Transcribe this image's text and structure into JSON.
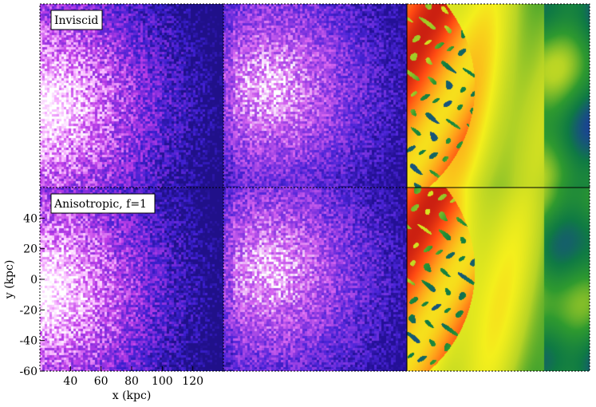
{
  "figure": {
    "rows": [
      {
        "label": "Inviscid"
      },
      {
        "label": "Anisotropic, f=1"
      }
    ],
    "x_axis": {
      "label": "x (kpc)",
      "range": [
        20,
        140
      ],
      "ticks": [
        40,
        60,
        80,
        100,
        120
      ]
    },
    "y_axis": {
      "label": "y (kpc)",
      "range": [
        -60,
        60
      ],
      "ticks": [
        40,
        20,
        0,
        -20,
        -40,
        -60
      ]
    },
    "colormaps": {
      "column1": [
        "#20108a",
        "#3b1fd0",
        "#7a2bdc",
        "#c040e8",
        "#f7b3ff",
        "#ffffff"
      ],
      "column2": [
        "#241096",
        "#4a24d8",
        "#8f3ae2",
        "#d766f0",
        "#ffffff"
      ],
      "column3": [
        "#1b3f9a",
        "#0f7a44",
        "#2f9a2f",
        "#b7d425",
        "#f4ef1c",
        "#ff9f1a",
        "#ff4a12",
        "#b71010"
      ]
    }
  }
}
